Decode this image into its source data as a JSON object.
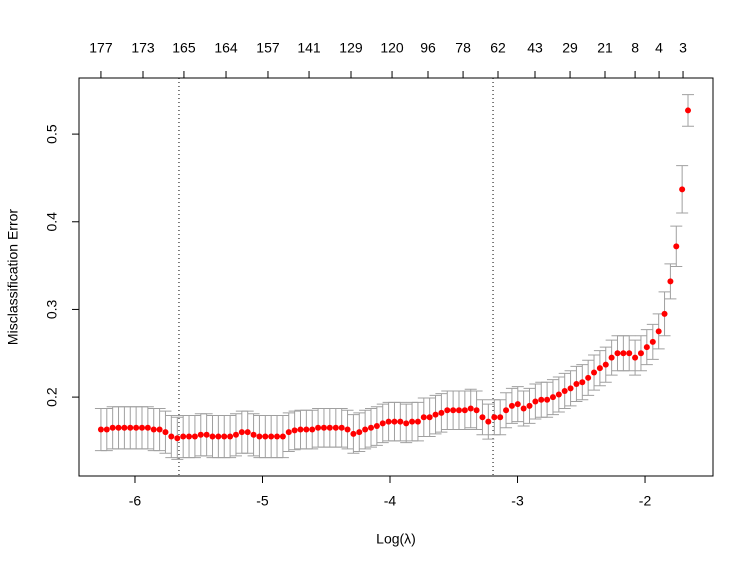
{
  "chart_data": {
    "type": "errorbar_scatter",
    "x_label": "Log(λ)",
    "y_label": "Misclassification Error",
    "xlim": [
      -6.439,
      -1.467
    ],
    "ylim": [
      0.11,
      0.564
    ],
    "xticks": [
      -6,
      -5,
      -4,
      -3,
      -2
    ],
    "yticks": [
      0.2,
      0.3,
      0.4,
      0.5
    ],
    "top_ticks": [
      {
        "value": -6.267,
        "label": "177"
      },
      {
        "value": -5.937,
        "label": "173"
      },
      {
        "value": -5.616,
        "label": "165"
      },
      {
        "value": -5.286,
        "label": "164"
      },
      {
        "value": -4.957,
        "label": "157"
      },
      {
        "value": -4.635,
        "label": "141"
      },
      {
        "value": -4.306,
        "label": "129"
      },
      {
        "value": -3.984,
        "label": "120"
      },
      {
        "value": -3.702,
        "label": "96"
      },
      {
        "value": -3.427,
        "label": "78"
      },
      {
        "value": -3.153,
        "label": "62"
      },
      {
        "value": -2.863,
        "label": "43"
      },
      {
        "value": -2.588,
        "label": "29"
      },
      {
        "value": -2.314,
        "label": "21"
      },
      {
        "value": -2.078,
        "label": "8"
      },
      {
        "value": -1.89,
        "label": "4"
      },
      {
        "value": -1.702,
        "label": "3"
      }
    ],
    "vlines": [
      -5.655,
      -3.192
    ],
    "point_color": "#ff0000",
    "errorbar_color": "#a0a0a0",
    "x": [
      -6.267,
      -6.221,
      -6.175,
      -6.129,
      -6.083,
      -6.037,
      -5.991,
      -5.945,
      -5.899,
      -5.853,
      -5.807,
      -5.761,
      -5.715,
      -5.668,
      -5.622,
      -5.576,
      -5.53,
      -5.484,
      -5.438,
      -5.392,
      -5.346,
      -5.3,
      -5.254,
      -5.208,
      -5.162,
      -5.116,
      -5.07,
      -5.024,
      -4.978,
      -4.932,
      -4.886,
      -4.84,
      -4.794,
      -4.748,
      -4.702,
      -4.656,
      -4.61,
      -4.564,
      -4.518,
      -4.472,
      -4.425,
      -4.379,
      -4.333,
      -4.287,
      -4.241,
      -4.195,
      -4.149,
      -4.103,
      -4.057,
      -4.011,
      -3.965,
      -3.919,
      -3.873,
      -3.827,
      -3.781,
      -3.735,
      -3.689,
      -3.643,
      -3.597,
      -3.551,
      -3.505,
      -3.459,
      -3.413,
      -3.367,
      -3.321,
      -3.275,
      -3.229,
      -3.182,
      -3.136,
      -3.09,
      -3.044,
      -2.998,
      -2.952,
      -2.906,
      -2.86,
      -2.814,
      -2.768,
      -2.722,
      -2.676,
      -2.63,
      -2.584,
      -2.538,
      -2.492,
      -2.446,
      -2.4,
      -2.354,
      -2.308,
      -2.262,
      -2.216,
      -2.17,
      -2.124,
      -2.078,
      -2.032,
      -1.986,
      -1.939,
      -1.893,
      -1.847,
      -1.801,
      -1.755,
      -1.709,
      -1.663
    ],
    "values": [
      0.163,
      0.163,
      0.165,
      0.165,
      0.165,
      0.165,
      0.165,
      0.165,
      0.165,
      0.163,
      0.163,
      0.16,
      0.155,
      0.153,
      0.155,
      0.155,
      0.155,
      0.157,
      0.157,
      0.155,
      0.155,
      0.155,
      0.155,
      0.157,
      0.16,
      0.16,
      0.157,
      0.155,
      0.155,
      0.155,
      0.155,
      0.155,
      0.16,
      0.162,
      0.163,
      0.163,
      0.163,
      0.165,
      0.165,
      0.165,
      0.165,
      0.165,
      0.163,
      0.158,
      0.16,
      0.163,
      0.165,
      0.167,
      0.17,
      0.172,
      0.172,
      0.172,
      0.17,
      0.172,
      0.172,
      0.177,
      0.177,
      0.18,
      0.182,
      0.185,
      0.185,
      0.185,
      0.185,
      0.187,
      0.185,
      0.177,
      0.172,
      0.177,
      0.177,
      0.185,
      0.19,
      0.192,
      0.187,
      0.19,
      0.195,
      0.197,
      0.197,
      0.2,
      0.203,
      0.207,
      0.21,
      0.215,
      0.217,
      0.222,
      0.228,
      0.233,
      0.237,
      0.245,
      0.25,
      0.25,
      0.25,
      0.245,
      0.25,
      0.257,
      0.263,
      0.275,
      0.295,
      0.332,
      0.372,
      0.437,
      0.527
    ],
    "errors": [
      0.024,
      0.024,
      0.024,
      0.024,
      0.024,
      0.024,
      0.024,
      0.024,
      0.024,
      0.024,
      0.024,
      0.024,
      0.024,
      0.024,
      0.024,
      0.024,
      0.024,
      0.024,
      0.024,
      0.024,
      0.024,
      0.024,
      0.024,
      0.024,
      0.024,
      0.024,
      0.024,
      0.024,
      0.024,
      0.024,
      0.024,
      0.024,
      0.022,
      0.022,
      0.022,
      0.022,
      0.022,
      0.022,
      0.022,
      0.022,
      0.022,
      0.022,
      0.022,
      0.022,
      0.022,
      0.022,
      0.022,
      0.022,
      0.022,
      0.022,
      0.022,
      0.022,
      0.022,
      0.022,
      0.022,
      0.022,
      0.022,
      0.022,
      0.022,
      0.022,
      0.022,
      0.022,
      0.022,
      0.022,
      0.022,
      0.02,
      0.02,
      0.02,
      0.02,
      0.02,
      0.02,
      0.02,
      0.02,
      0.02,
      0.02,
      0.02,
      0.02,
      0.02,
      0.02,
      0.02,
      0.02,
      0.02,
      0.02,
      0.02,
      0.02,
      0.02,
      0.02,
      0.02,
      0.02,
      0.02,
      0.02,
      0.02,
      0.02,
      0.02,
      0.02,
      0.02,
      0.025,
      0.02,
      0.023,
      0.027,
      0.018
    ]
  }
}
